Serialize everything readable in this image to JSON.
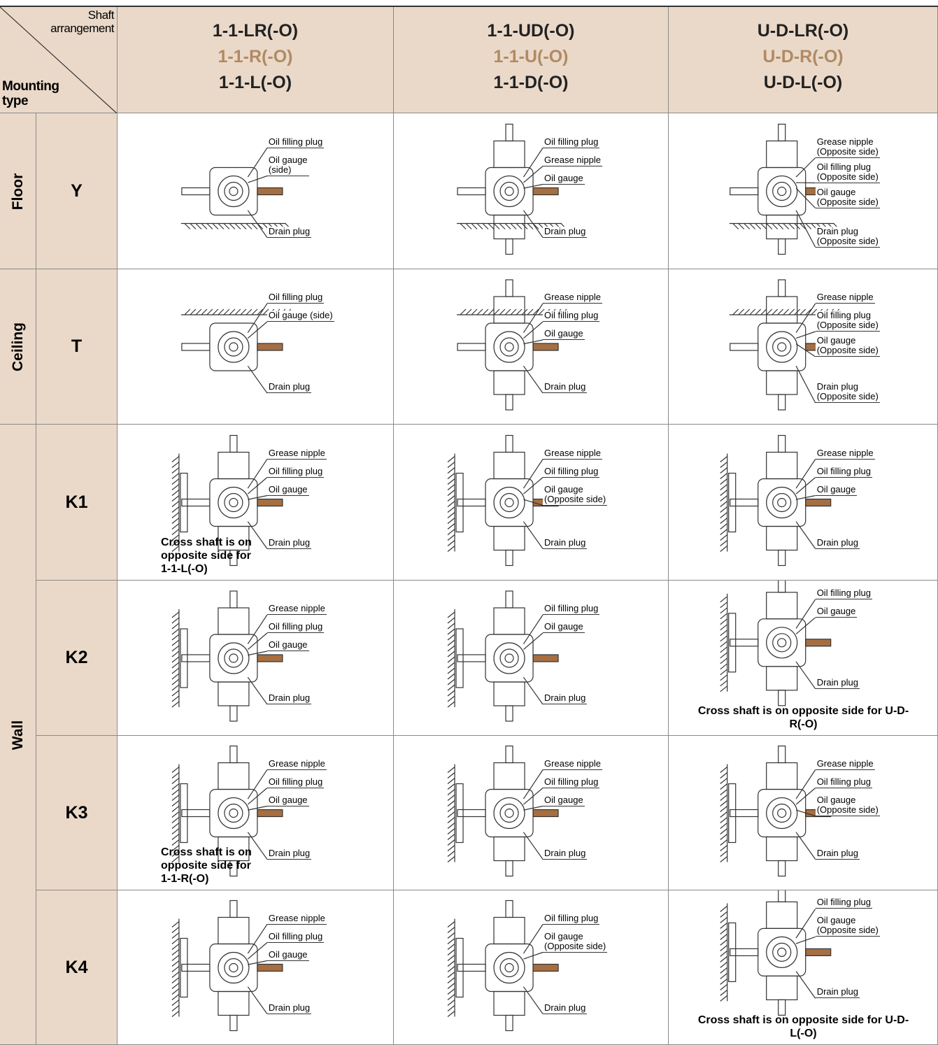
{
  "header": {
    "corner": {
      "shaft_label": "Shaft arrangement",
      "mounting_label": "Mounting type"
    },
    "columns": [
      {
        "codes": [
          "1-1-LR(-O)",
          "1-1-R(-O)",
          "1-1-L(-O)"
        ]
      },
      {
        "codes": [
          "1-1-UD(-O)",
          "1-1-U(-O)",
          "1-1-D(-O)"
        ]
      },
      {
        "codes": [
          "U-D-LR(-O)",
          "U-D-R(-O)",
          "U-D-L(-O)"
        ]
      }
    ]
  },
  "groups": [
    {
      "name": "Floor",
      "rows": [
        {
          "code": "Y",
          "cells": [
            {
              "callouts": [
                {
                  "label": "Oil filling plug"
                },
                {
                  "label": "Oil gauge",
                  "sub": "(side)"
                },
                {
                  "label": "Drain plug"
                }
              ]
            },
            {
              "callouts": [
                {
                  "label": "Oil filling plug"
                },
                {
                  "label": "Grease nipple"
                },
                {
                  "label": "Oil gauge"
                },
                {
                  "label": "Drain plug"
                }
              ]
            },
            {
              "callouts": [
                {
                  "label": "Grease nipple",
                  "sub": "(Opposite side)"
                },
                {
                  "label": "Oil filling plug",
                  "sub": "(Opposite side)"
                },
                {
                  "label": "Oil gauge",
                  "sub": "(Opposite side)"
                },
                {
                  "label": "Drain plug",
                  "sub": "(Opposite side)"
                }
              ]
            }
          ]
        }
      ]
    },
    {
      "name": "Ceiling",
      "rows": [
        {
          "code": "T",
          "cells": [
            {
              "callouts": [
                {
                  "label": "Oil filling plug"
                },
                {
                  "label": "Oil gauge (side)"
                },
                {
                  "label": "Drain plug"
                }
              ]
            },
            {
              "callouts": [
                {
                  "label": "Grease nipple"
                },
                {
                  "label": "Oil filling plug"
                },
                {
                  "label": "Oil gauge"
                },
                {
                  "label": "Drain plug"
                }
              ]
            },
            {
              "callouts": [
                {
                  "label": "Grease nipple"
                },
                {
                  "label": "Oil filling plug",
                  "sub": "(Opposite side)"
                },
                {
                  "label": "Oil gauge",
                  "sub": "(Opposite side)"
                },
                {
                  "label": "Drain plug",
                  "sub": "(Opposite side)"
                }
              ]
            }
          ]
        }
      ]
    },
    {
      "name": "Wall",
      "rows": [
        {
          "code": "K1",
          "cells": [
            {
              "callouts": [
                {
                  "label": "Grease nipple"
                },
                {
                  "label": "Oil filling plug"
                },
                {
                  "label": "Oil gauge"
                },
                {
                  "label": "Drain plug"
                }
              ],
              "note": "Cross shaft is on opposite side for 1-1-L(-O)"
            },
            {
              "callouts": [
                {
                  "label": "Grease nipple"
                },
                {
                  "label": "Oil filling plug"
                },
                {
                  "label": "Oil gauge",
                  "sub": "(Opposite side)"
                },
                {
                  "label": "Drain plug"
                }
              ]
            },
            {
              "callouts": [
                {
                  "label": "Grease nipple"
                },
                {
                  "label": "Oil filling plug"
                },
                {
                  "label": "Oil gauge"
                },
                {
                  "label": "Drain plug"
                }
              ]
            }
          ]
        },
        {
          "code": "K2",
          "cells": [
            {
              "callouts": [
                {
                  "label": "Grease nipple"
                },
                {
                  "label": "Oil filling plug"
                },
                {
                  "label": "Oil gauge"
                },
                {
                  "label": "Drain plug"
                }
              ]
            },
            {
              "callouts": [
                {
                  "label": "Oil filling plug"
                },
                {
                  "label": "Oil gauge"
                },
                {
                  "label": "Drain plug"
                }
              ]
            },
            {
              "callouts": [
                {
                  "label": "Oil filling plug"
                },
                {
                  "label": "Oil gauge"
                },
                {
                  "label": "Drain plug"
                }
              ],
              "note": "Cross shaft is on opposite side for U-D-R(-O)"
            }
          ]
        },
        {
          "code": "K3",
          "cells": [
            {
              "callouts": [
                {
                  "label": "Grease nipple"
                },
                {
                  "label": "Oil filling plug"
                },
                {
                  "label": "Oil gauge"
                },
                {
                  "label": "Drain plug"
                }
              ],
              "note": "Cross shaft is on opposite side for 1-1-R(-O)"
            },
            {
              "callouts": [
                {
                  "label": "Grease nipple"
                },
                {
                  "label": "Oil filling plug"
                },
                {
                  "label": "Oil gauge"
                },
                {
                  "label": "Drain plug"
                }
              ]
            },
            {
              "callouts": [
                {
                  "label": "Grease nipple"
                },
                {
                  "label": "Oil filling plug"
                },
                {
                  "label": "Oil gauge",
                  "sub": "(Opposite side)"
                },
                {
                  "label": "Drain plug"
                }
              ]
            }
          ]
        },
        {
          "code": "K4",
          "cells": [
            {
              "callouts": [
                {
                  "label": "Grease nipple"
                },
                {
                  "label": "Oil filling plug"
                },
                {
                  "label": "Oil gauge"
                },
                {
                  "label": "Drain plug"
                }
              ]
            },
            {
              "callouts": [
                {
                  "label": "Oil filling plug"
                },
                {
                  "label": "Oil gauge",
                  "sub": "(Opposite side)"
                },
                {
                  "label": "Drain plug"
                }
              ]
            },
            {
              "callouts": [
                {
                  "label": "Oil filling plug"
                },
                {
                  "label": "Oil gauge",
                  "sub": "(Opposite side)"
                },
                {
                  "label": "Drain plug"
                }
              ],
              "note": "Cross shaft is on opposite side for U-D-L(-O)"
            }
          ]
        }
      ]
    }
  ]
}
